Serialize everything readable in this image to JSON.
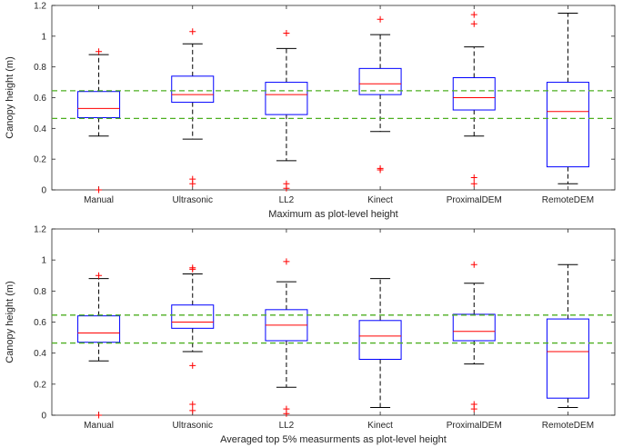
{
  "figure": {
    "background": "#ffffff"
  },
  "colors": {
    "box": "#0000ff",
    "median": "#ff0000",
    "whisker": "#000000",
    "outlier": "#ff0000",
    "reference": "#4daf20",
    "axis": "#262626"
  },
  "chart_data": [
    {
      "type": "box",
      "xlabel": "Maximum as plot-level height",
      "ylabel": "Canopy height (m)",
      "ylim": [
        0,
        1.2
      ],
      "yticks": [
        "0",
        "0.2",
        "0.4",
        "0.6",
        "0.8",
        "1",
        "1.2"
      ],
      "ytick_values": [
        0,
        0.2,
        0.4,
        0.6,
        0.8,
        1.0,
        1.2
      ],
      "categories": [
        "Manual",
        "Ultrasonic",
        "LL2",
        "Kinect",
        "ProximalDEM",
        "RemoteDEM"
      ],
      "reference_lines": [
        0.645,
        0.465
      ],
      "boxes": [
        {
          "whisker_low": 0.35,
          "q1": 0.47,
          "median": 0.53,
          "q3": 0.64,
          "whisker_high": 0.88,
          "outliers": [
            0.9,
            0.0
          ]
        },
        {
          "whisker_low": 0.33,
          "q1": 0.57,
          "median": 0.62,
          "q3": 0.74,
          "whisker_high": 0.95,
          "outliers": [
            1.03,
            0.07,
            0.04
          ]
        },
        {
          "whisker_low": 0.19,
          "q1": 0.49,
          "median": 0.62,
          "q3": 0.7,
          "whisker_high": 0.92,
          "outliers": [
            1.02,
            0.04,
            0.01
          ]
        },
        {
          "whisker_low": 0.38,
          "q1": 0.62,
          "median": 0.69,
          "q3": 0.79,
          "whisker_high": 1.01,
          "outliers": [
            1.11,
            0.14,
            0.13
          ]
        },
        {
          "whisker_low": 0.35,
          "q1": 0.52,
          "median": 0.6,
          "q3": 0.73,
          "whisker_high": 0.93,
          "outliers": [
            1.14,
            1.08,
            0.08,
            0.04
          ]
        },
        {
          "whisker_low": 0.04,
          "q1": 0.15,
          "median": 0.51,
          "q3": 0.7,
          "whisker_high": 1.15,
          "outliers": []
        }
      ]
    },
    {
      "type": "box",
      "xlabel": "Averaged top 5% measurments as plot-level height",
      "ylabel": "Canopy height (m)",
      "ylim": [
        0,
        1.2
      ],
      "yticks": [
        "0",
        "0.2",
        "0.4",
        "0.6",
        "0.8",
        "1",
        "1.2"
      ],
      "ytick_values": [
        0,
        0.2,
        0.4,
        0.6,
        0.8,
        1.0,
        1.2
      ],
      "categories": [
        "Manual",
        "Ultrasonic",
        "LL2",
        "Kinect",
        "ProximalDEM",
        "RemoteDEM"
      ],
      "reference_lines": [
        0.645,
        0.465
      ],
      "boxes": [
        {
          "whisker_low": 0.35,
          "q1": 0.47,
          "median": 0.53,
          "q3": 0.64,
          "whisker_high": 0.88,
          "outliers": [
            0.9,
            0.0
          ]
        },
        {
          "whisker_low": 0.41,
          "q1": 0.56,
          "median": 0.6,
          "q3": 0.71,
          "whisker_high": 0.91,
          "outliers": [
            0.95,
            0.94,
            0.32,
            0.07,
            0.03
          ]
        },
        {
          "whisker_low": 0.18,
          "q1": 0.48,
          "median": 0.58,
          "q3": 0.68,
          "whisker_high": 0.86,
          "outliers": [
            0.99,
            0.04,
            0.01
          ]
        },
        {
          "whisker_low": 0.05,
          "q1": 0.36,
          "median": 0.51,
          "q3": 0.61,
          "whisker_high": 0.88,
          "outliers": []
        },
        {
          "whisker_low": 0.33,
          "q1": 0.48,
          "median": 0.54,
          "q3": 0.65,
          "whisker_high": 0.85,
          "outliers": [
            0.97,
            0.07,
            0.04
          ]
        },
        {
          "whisker_low": 0.05,
          "q1": 0.11,
          "median": 0.41,
          "q3": 0.62,
          "whisker_high": 0.97,
          "outliers": []
        }
      ]
    }
  ]
}
